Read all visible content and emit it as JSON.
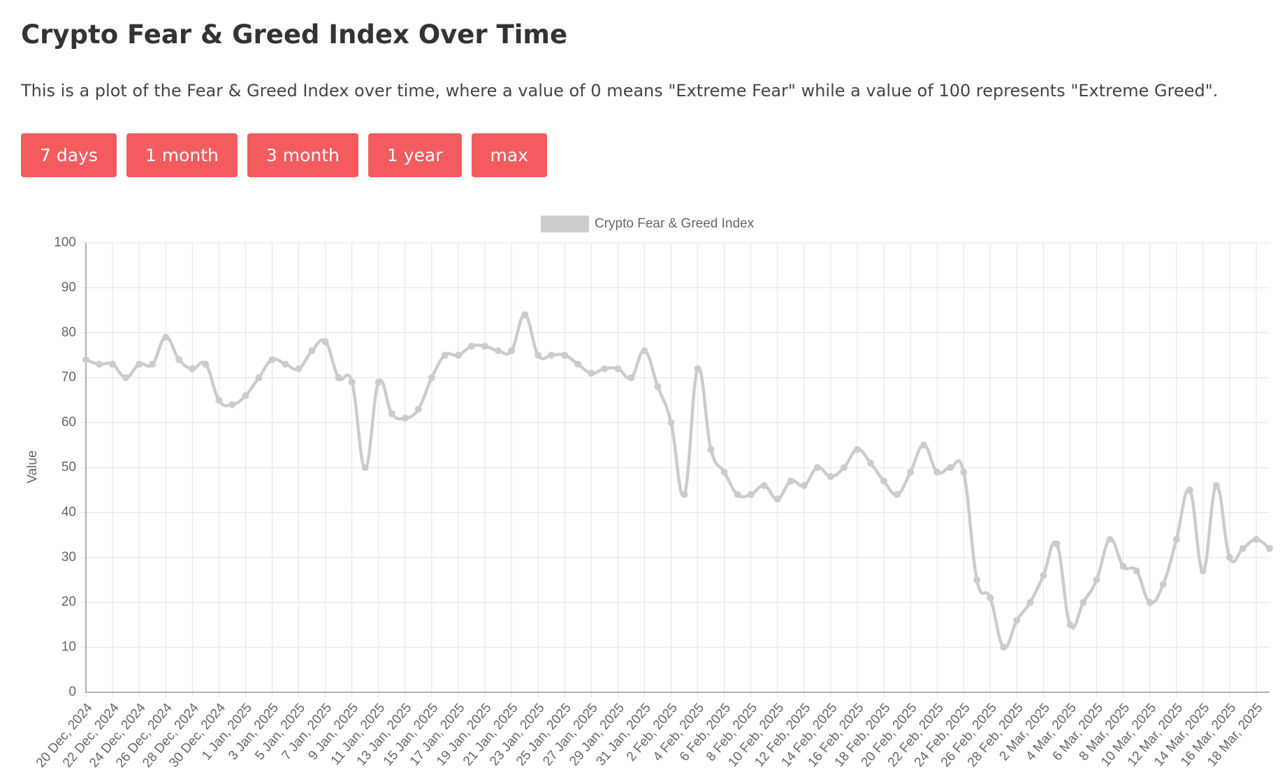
{
  "header": {
    "title": "Crypto Fear & Greed Index Over Time",
    "description": "This is a plot of the Fear & Greed Index over time, where a value of 0 means \"Extreme Fear\" while a value of 100 represents \"Extreme Greed\"."
  },
  "buttons": [
    "7 days",
    "1 month",
    "3 month",
    "1 year",
    "max"
  ],
  "chart_data": {
    "type": "line",
    "ylabel": "Value",
    "categories": [
      "20 Dec, 2024",
      null,
      "22 Dec, 2024",
      null,
      "24 Dec, 2024",
      null,
      "26 Dec, 2024",
      null,
      "28 Dec, 2024",
      null,
      "30 Dec, 2024",
      null,
      "1 Jan, 2025",
      null,
      "3 Jan, 2025",
      null,
      "5 Jan, 2025",
      null,
      "7 Jan, 2025",
      null,
      "9 Jan, 2025",
      null,
      "11 Jan, 2025",
      null,
      "13 Jan, 2025",
      null,
      "15 Jan, 2025",
      null,
      "17 Jan, 2025",
      null,
      "19 Jan, 2025",
      null,
      "21 Jan, 2025",
      null,
      "23 Jan, 2025",
      null,
      "25 Jan, 2025",
      null,
      "27 Jan, 2025",
      null,
      "29 Jan, 2025",
      null,
      "31 Jan, 2025",
      null,
      "2 Feb, 2025",
      null,
      "4 Feb, 2025",
      null,
      "6 Feb, 2025",
      null,
      "8 Feb, 2025",
      null,
      "10 Feb, 2025",
      null,
      "12 Feb, 2025",
      null,
      "14 Feb, 2025",
      null,
      "16 Feb, 2025",
      null,
      "18 Feb, 2025",
      null,
      "20 Feb, 2025",
      null,
      "22 Feb, 2025",
      null,
      "24 Feb, 2025",
      null,
      "26 Feb, 2025",
      null,
      "28 Feb, 2025",
      null,
      "2 Mar, 2025",
      null,
      "4 Mar, 2025",
      null,
      "6 Mar, 2025",
      null,
      "8 Mar, 2025",
      null,
      "10 Mar, 2025",
      null,
      "12 Mar, 2025",
      null,
      "14 Mar, 2025",
      null,
      "16 Mar, 2025",
      null,
      "18 Mar, 2025",
      null
    ],
    "series": [
      {
        "name": "Crypto Fear & Greed Index",
        "color": "#cccccc",
        "values": [
          74,
          73,
          73,
          70,
          73,
          73,
          79,
          74,
          72,
          73,
          65,
          64,
          66,
          70,
          74,
          73,
          72,
          76,
          78,
          70,
          69,
          50,
          69,
          62,
          61,
          63,
          70,
          75,
          75,
          77,
          77,
          76,
          76,
          84,
          75,
          75,
          75,
          73,
          71,
          72,
          72,
          70,
          76,
          68,
          60,
          44,
          72,
          54,
          49,
          44,
          44,
          46,
          43,
          47,
          46,
          50,
          48,
          50,
          54,
          51,
          47,
          44,
          49,
          55,
          49,
          50,
          49,
          25,
          21,
          10,
          16,
          20,
          26,
          33,
          15,
          20,
          25,
          34,
          28,
          27,
          20,
          24,
          34,
          45,
          27,
          46,
          30,
          32,
          34,
          32
        ]
      }
    ],
    "ylim": [
      0,
      100
    ],
    "yticks": [
      0,
      10,
      20,
      30,
      40,
      50,
      60,
      70,
      80,
      90,
      100
    ],
    "grid": true,
    "legend": "top"
  }
}
